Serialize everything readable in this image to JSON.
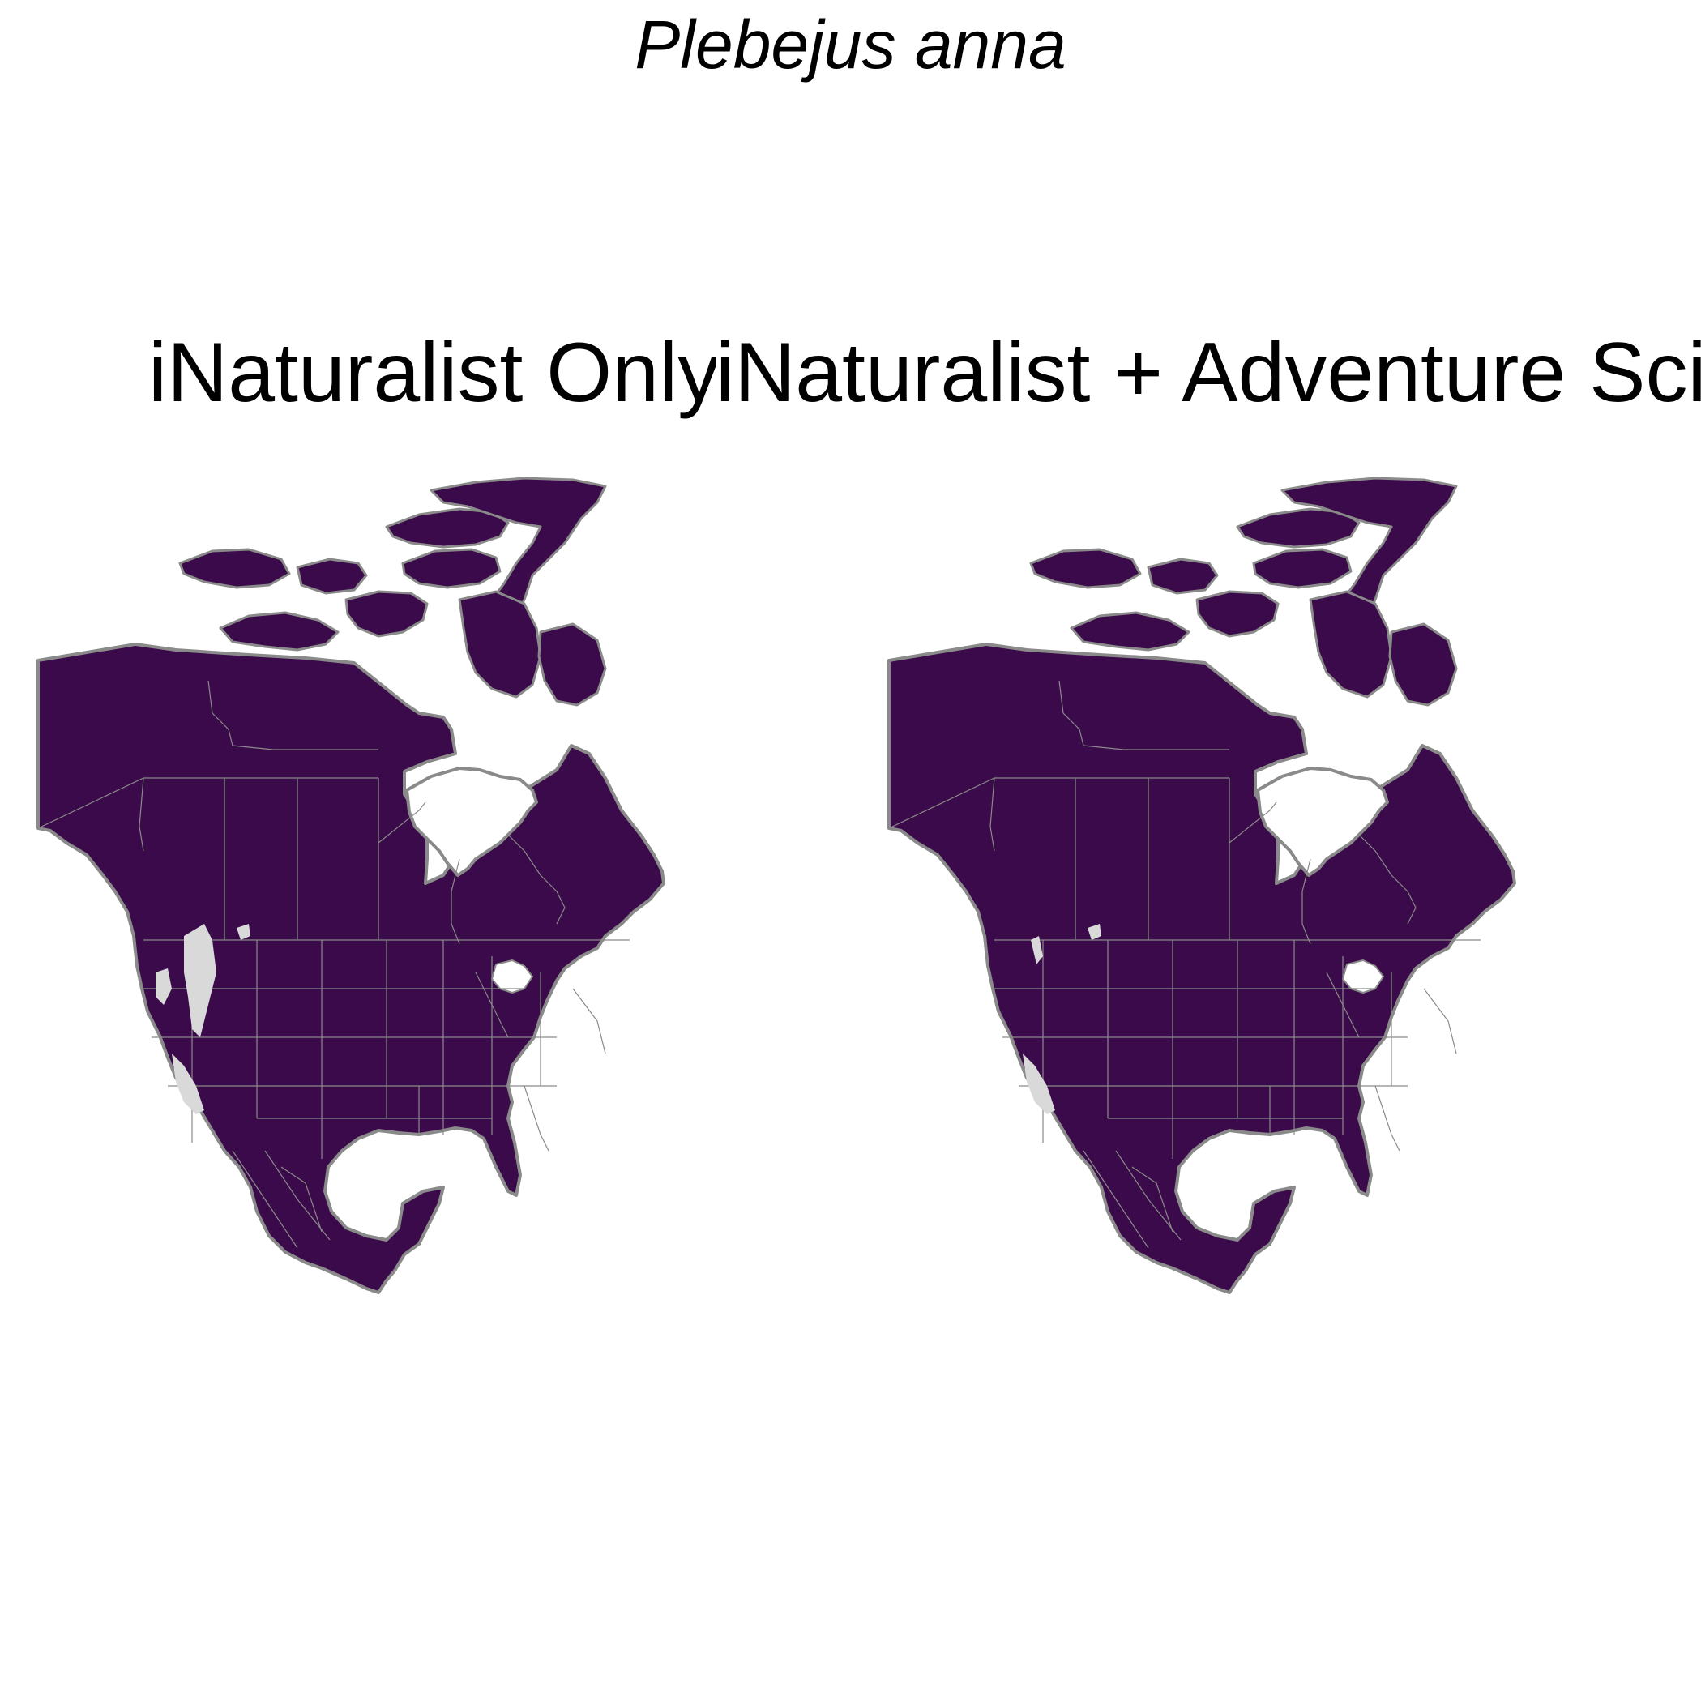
{
  "title": "Plebejus anna",
  "panels": [
    {
      "title": "iNaturalist Only"
    },
    {
      "title": "iNaturalist + Adventure Scie"
    }
  ],
  "colors": {
    "land": "#3b0a4a",
    "border": "#8a8a8a",
    "absence": "#d9d9d9",
    "background": "#ffffff"
  }
}
